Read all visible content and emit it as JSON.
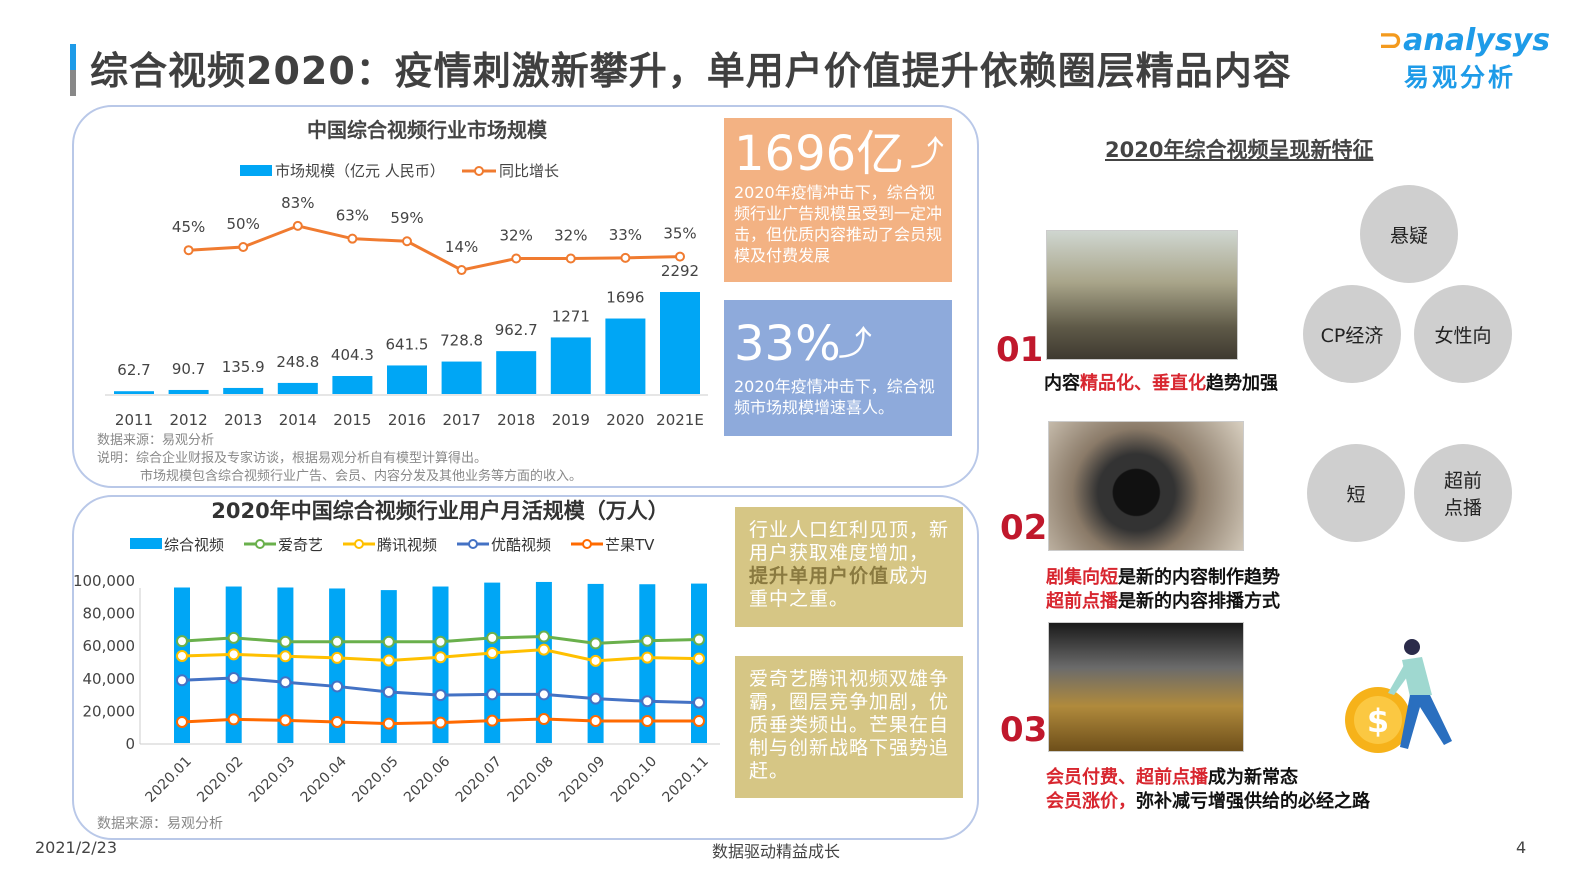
{
  "header": {
    "title": "综合视频2020：疫情刺激新攀升，单用户价值提升依赖圈层精品内容",
    "logo_en": "analysys",
    "logo_cn": "易观分析"
  },
  "colors": {
    "bar": "#00a6f5",
    "growth": "#f07b30",
    "iqiyi": "#6ab04c",
    "tencent": "#ffc000",
    "youku": "#4472c4",
    "mango": "#ff6a00",
    "orange_box": "#f3b283",
    "blue_box": "#8eaadb",
    "gold_box": "#d6c685",
    "accent_red": "#c0182c"
  },
  "chart_data": [
    {
      "type": "bar+line",
      "title": "中国综合视频行业市场规模",
      "legend": [
        "市场规模（亿元 人民币）",
        "同比增长"
      ],
      "categories": [
        "2011",
        "2012",
        "2013",
        "2014",
        "2015",
        "2016",
        "2017",
        "2018",
        "2019",
        "2020",
        "2021E"
      ],
      "series": [
        {
          "name": "市场规模（亿元 人民币）",
          "type": "bar",
          "values": [
            62.7,
            90.7,
            135.9,
            248.8,
            404.3,
            641.5,
            728.8,
            962.7,
            1271,
            1696,
            2292
          ],
          "labels": [
            "62.7",
            "90.7",
            "135.9",
            "248.8",
            "404.3",
            "641.5",
            "728.8",
            "962.7",
            "1271",
            "1696",
            "2292"
          ]
        },
        {
          "name": "同比增长",
          "type": "line",
          "values": [
            null,
            45,
            50,
            83,
            63,
            59,
            14,
            32,
            32,
            33,
            35
          ],
          "labels": [
            "",
            "45%",
            "50%",
            "83%",
            "63%",
            "59%",
            "14%",
            "32%",
            "32%",
            "33%",
            "35%"
          ]
        }
      ],
      "source": "数据来源：易观分析",
      "notes": [
        "说明：综合企业财报及专家访谈，根据易观分析自有模型计算得出。",
        "市场规模包含综合视频行业广告、会员、内容分发及其他业务等方面的收入。"
      ]
    },
    {
      "type": "bar+line",
      "title": "2020年中国综合视频行业用户月活规模（万人）",
      "legend": [
        "综合视频",
        "爱奇艺",
        "腾讯视频",
        "优酷视频",
        "芒果TV"
      ],
      "categories": [
        "2020.01",
        "2020.02",
        "2020.03",
        "2020.04",
        "2020.05",
        "2020.06",
        "2020.07",
        "2020.08",
        "2020.09",
        "2020.10",
        "2020.11"
      ],
      "yticks": [
        "100,000",
        "80,000",
        "60,000",
        "40,000",
        "20,000",
        "0"
      ],
      "ylim": [
        0,
        100000
      ],
      "series": [
        {
          "name": "综合视频",
          "type": "bar",
          "values": [
            95400,
            96000,
            95400,
            94800,
            93800,
            96000,
            98400,
            98800,
            97600,
            97400,
            97800
          ]
        },
        {
          "name": "爱奇艺",
          "type": "line",
          "values": [
            62500,
            64500,
            62100,
            62100,
            62100,
            62100,
            64500,
            65300,
            61100,
            62700,
            63500
          ]
        },
        {
          "name": "腾讯视频",
          "type": "line",
          "values": [
            53400,
            54400,
            53200,
            52200,
            50600,
            52600,
            55200,
            57300,
            50400,
            52400,
            51800
          ]
        },
        {
          "name": "优酷视频",
          "type": "line",
          "values": [
            38500,
            39900,
            37300,
            34700,
            31300,
            29400,
            29800,
            29800,
            27200,
            25600,
            24800
          ]
        },
        {
          "name": "芒果TV",
          "type": "line",
          "values": [
            12900,
            14500,
            13900,
            12900,
            11900,
            12500,
            13700,
            14700,
            13500,
            13500,
            13500
          ]
        }
      ],
      "source": "数据来源：易观分析"
    }
  ],
  "boxes": {
    "market": {
      "big": "1696亿",
      "text": "2020年疫情冲击下，综合视频行业广告规模虽受到一定冲击，但优质内容推动了会员规模及付费发展"
    },
    "growth": {
      "big": "33%",
      "text": "2020年疫情冲击下，综合视频市场规模增速喜人。"
    },
    "gold1": {
      "pre": "行业人口红利见顶，新用户获取难度增加，",
      "bold": "提升单用户价值",
      "post": "成为重中之重。"
    },
    "gold2": {
      "text": "爱奇艺腾讯视频双雄争霸，圈层竞争加剧，优质垂类频出。芒果在自制与创新战略下强势追赶。"
    }
  },
  "features": {
    "title": "2020年综合视频呈现新特征",
    "items": [
      {
        "num": "01",
        "cap": [
          {
            "t": "内容",
            "r": false
          },
          {
            "t": "精品化、垂直化",
            "r": true
          },
          {
            "t": "趋势加强",
            "r": false
          }
        ],
        "circles": [
          "悬疑",
          "CP经济",
          "女性向"
        ]
      },
      {
        "num": "02",
        "cap1": [
          {
            "t": "剧集向短",
            "r": true
          },
          {
            "t": "是新的内容制作趋势",
            "r": false
          }
        ],
        "cap2": [
          {
            "t": "超前点播",
            "r": true
          },
          {
            "t": "是新的内容排播方式",
            "r": false
          }
        ],
        "circles": [
          "短",
          "超前点播"
        ]
      },
      {
        "num": "03",
        "cap1": [
          {
            "t": "会员付费、超前点播",
            "r": true
          },
          {
            "t": "成为新常态",
            "r": false
          }
        ],
        "cap2": [
          {
            "t": "会员涨价，",
            "r": true
          },
          {
            "t": "弥补减亏增强供给的必经之路",
            "r": false
          }
        ]
      }
    ]
  },
  "footer": {
    "date": "2021/2/23",
    "slogan": "数据驱动精益成长",
    "page": "4"
  }
}
